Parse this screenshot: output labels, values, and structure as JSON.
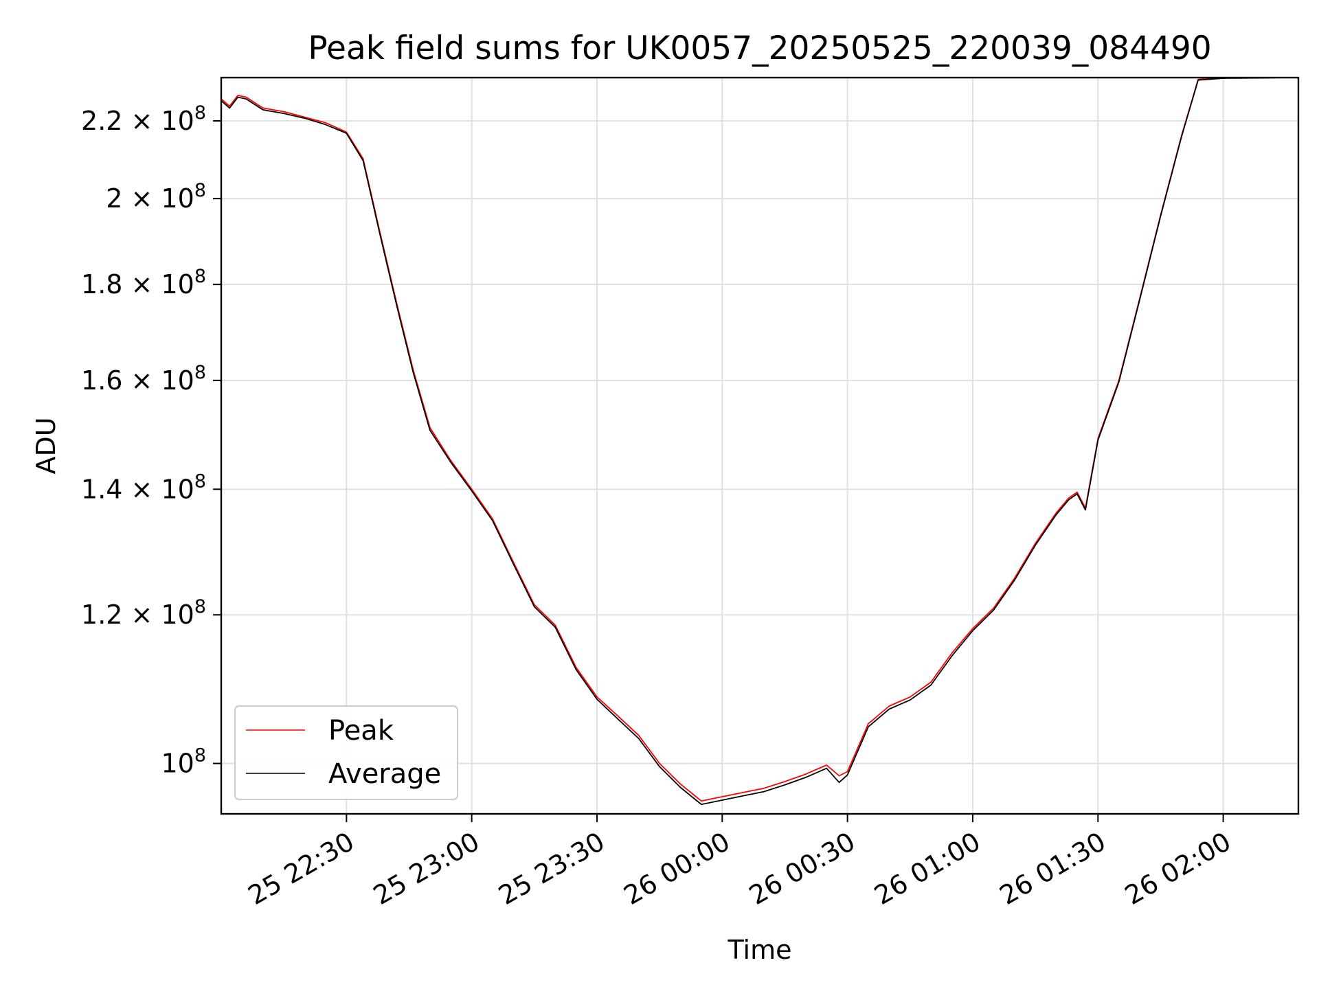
{
  "chart_data": {
    "type": "line",
    "title": "Peak field sums for UK0057_20250525_220039_084490",
    "xlabel": "Time",
    "ylabel": "ADU",
    "yscale": "log",
    "grid": true,
    "legend": {
      "placement": "lower-left",
      "entries": [
        "Peak",
        "Average"
      ]
    },
    "x_ticks": [
      "25 22:30",
      "25 23:00",
      "25 23:30",
      "26 00:00",
      "26 00:30",
      "26 01:00",
      "26 01:30",
      "26 02:00"
    ],
    "x_tick_times": [
      "2025-05-25 22:30",
      "2025-05-25 23:00",
      "2025-05-25 23:30",
      "2025-05-26 00:00",
      "2025-05-26 00:30",
      "2025-05-26 01:00",
      "2025-05-26 01:30",
      "2025-05-26 02:00"
    ],
    "xlim": [
      "2025-05-25 22:00",
      "2025-05-26 02:18"
    ],
    "y_ticks": [
      {
        "value": 220000000,
        "mant": "2.2",
        "exp": "8"
      },
      {
        "value": 200000000,
        "mant": "2",
        "exp": "8"
      },
      {
        "value": 180000000,
        "mant": "1.8",
        "exp": "8"
      },
      {
        "value": 160000000,
        "mant": "1.6",
        "exp": "8"
      },
      {
        "value": 140000000,
        "mant": "1.4",
        "exp": "8"
      },
      {
        "value": 120000000,
        "mant": "1.2",
        "exp": "8"
      },
      {
        "value": 100000000,
        "mant": "10",
        "exp": "8"
      }
    ],
    "ylim": [
      94000000,
      232000000
    ],
    "series": [
      {
        "name": "Peak",
        "color": "#ff0000",
        "x": [
          "2025-05-25 22:00",
          "2025-05-25 22:02",
          "2025-05-25 22:04",
          "2025-05-25 22:06",
          "2025-05-25 22:10",
          "2025-05-25 22:15",
          "2025-05-25 22:20",
          "2025-05-25 22:25",
          "2025-05-25 22:30",
          "2025-05-25 22:34",
          "2025-05-25 22:38",
          "2025-05-25 22:42",
          "2025-05-25 22:46",
          "2025-05-25 22:50",
          "2025-05-25 22:55",
          "2025-05-25 23:00",
          "2025-05-25 23:05",
          "2025-05-25 23:10",
          "2025-05-25 23:15",
          "2025-05-25 23:20",
          "2025-05-25 23:25",
          "2025-05-25 23:30",
          "2025-05-25 23:35",
          "2025-05-25 23:40",
          "2025-05-25 23:45",
          "2025-05-25 23:50",
          "2025-05-25 23:55",
          "2025-05-26 00:00",
          "2025-05-26 00:05",
          "2025-05-26 00:10",
          "2025-05-26 00:15",
          "2025-05-26 00:20",
          "2025-05-26 00:25",
          "2025-05-26 00:28",
          "2025-05-26 00:30",
          "2025-05-26 00:35",
          "2025-05-26 00:40",
          "2025-05-26 00:45",
          "2025-05-26 00:50",
          "2025-05-26 00:55",
          "2025-05-26 01:00",
          "2025-05-26 01:05",
          "2025-05-26 01:10",
          "2025-05-26 01:15",
          "2025-05-26 01:20",
          "2025-05-26 01:23",
          "2025-05-26 01:25",
          "2025-05-26 01:27",
          "2025-05-26 01:30",
          "2025-05-26 01:35",
          "2025-05-26 01:40",
          "2025-05-26 01:45",
          "2025-05-26 01:50",
          "2025-05-26 01:54",
          "2025-05-26 02:00",
          "2025-05-26 02:10",
          "2025-05-26 02:15"
        ],
        "y": [
          226000000,
          224000000,
          227000000,
          226500000,
          223500000,
          222500000,
          221000000,
          219500000,
          217000000,
          210000000,
          192000000,
          176000000,
          162000000,
          151000000,
          145000000,
          140000000,
          135000000,
          128000000,
          121500000,
          118500000,
          112500000,
          108500000,
          106000000,
          103500000,
          100000000,
          97500000,
          95500000,
          96000000,
          96500000,
          97000000,
          97800000,
          98700000,
          99800000,
          98500000,
          99000000,
          105000000,
          107300000,
          108500000,
          110500000,
          114500000,
          118000000,
          121000000,
          125500000,
          131000000,
          136000000,
          138500000,
          139500000,
          136800000,
          149000000,
          160000000,
          177000000,
          196000000,
          216000000,
          231500000,
          232000000,
          232000000,
          232000000
        ]
      },
      {
        "name": "Average",
        "color": "#000000",
        "x": [
          "2025-05-25 22:00",
          "2025-05-25 22:02",
          "2025-05-25 22:04",
          "2025-05-25 22:06",
          "2025-05-25 22:10",
          "2025-05-25 22:15",
          "2025-05-25 22:20",
          "2025-05-25 22:25",
          "2025-05-25 22:30",
          "2025-05-25 22:34",
          "2025-05-25 22:38",
          "2025-05-25 22:42",
          "2025-05-25 22:46",
          "2025-05-25 22:50",
          "2025-05-25 22:55",
          "2025-05-25 23:00",
          "2025-05-25 23:05",
          "2025-05-25 23:10",
          "2025-05-25 23:15",
          "2025-05-25 23:20",
          "2025-05-25 23:25",
          "2025-05-25 23:30",
          "2025-05-25 23:35",
          "2025-05-25 23:40",
          "2025-05-25 23:45",
          "2025-05-25 23:50",
          "2025-05-25 23:55",
          "2025-05-26 00:00",
          "2025-05-26 00:05",
          "2025-05-26 00:10",
          "2025-05-26 00:15",
          "2025-05-26 00:20",
          "2025-05-26 00:25",
          "2025-05-26 00:28",
          "2025-05-26 00:30",
          "2025-05-26 00:35",
          "2025-05-26 00:40",
          "2025-05-26 00:45",
          "2025-05-26 00:50",
          "2025-05-26 00:55",
          "2025-05-26 01:00",
          "2025-05-26 01:05",
          "2025-05-26 01:10",
          "2025-05-26 01:15",
          "2025-05-26 01:20",
          "2025-05-26 01:23",
          "2025-05-26 01:25",
          "2025-05-26 01:27",
          "2025-05-26 01:30",
          "2025-05-26 01:35",
          "2025-05-26 01:40",
          "2025-05-26 01:45",
          "2025-05-26 01:50",
          "2025-05-26 01:54",
          "2025-05-26 02:00",
          "2025-05-26 02:10",
          "2025-05-26 02:15"
        ],
        "y": [
          225500000,
          223500000,
          226500000,
          226000000,
          223000000,
          222000000,
          220700000,
          219000000,
          216700000,
          209500000,
          191500000,
          175500000,
          161500000,
          150500000,
          144700000,
          139700000,
          134700000,
          127700000,
          121200000,
          118200000,
          112200000,
          108200000,
          105600000,
          103100000,
          99600000,
          97100000,
          95100000,
          95600000,
          96100000,
          96600000,
          97400000,
          98300000,
          99400000,
          97700000,
          98600000,
          104600000,
          106900000,
          108100000,
          110100000,
          114100000,
          117700000,
          120700000,
          125200000,
          130700000,
          135700000,
          138200000,
          139200000,
          136500000,
          148700000,
          159700000,
          176700000,
          195700000,
          215700000,
          231300000,
          231800000,
          231900000,
          232000000
        ]
      }
    ]
  }
}
